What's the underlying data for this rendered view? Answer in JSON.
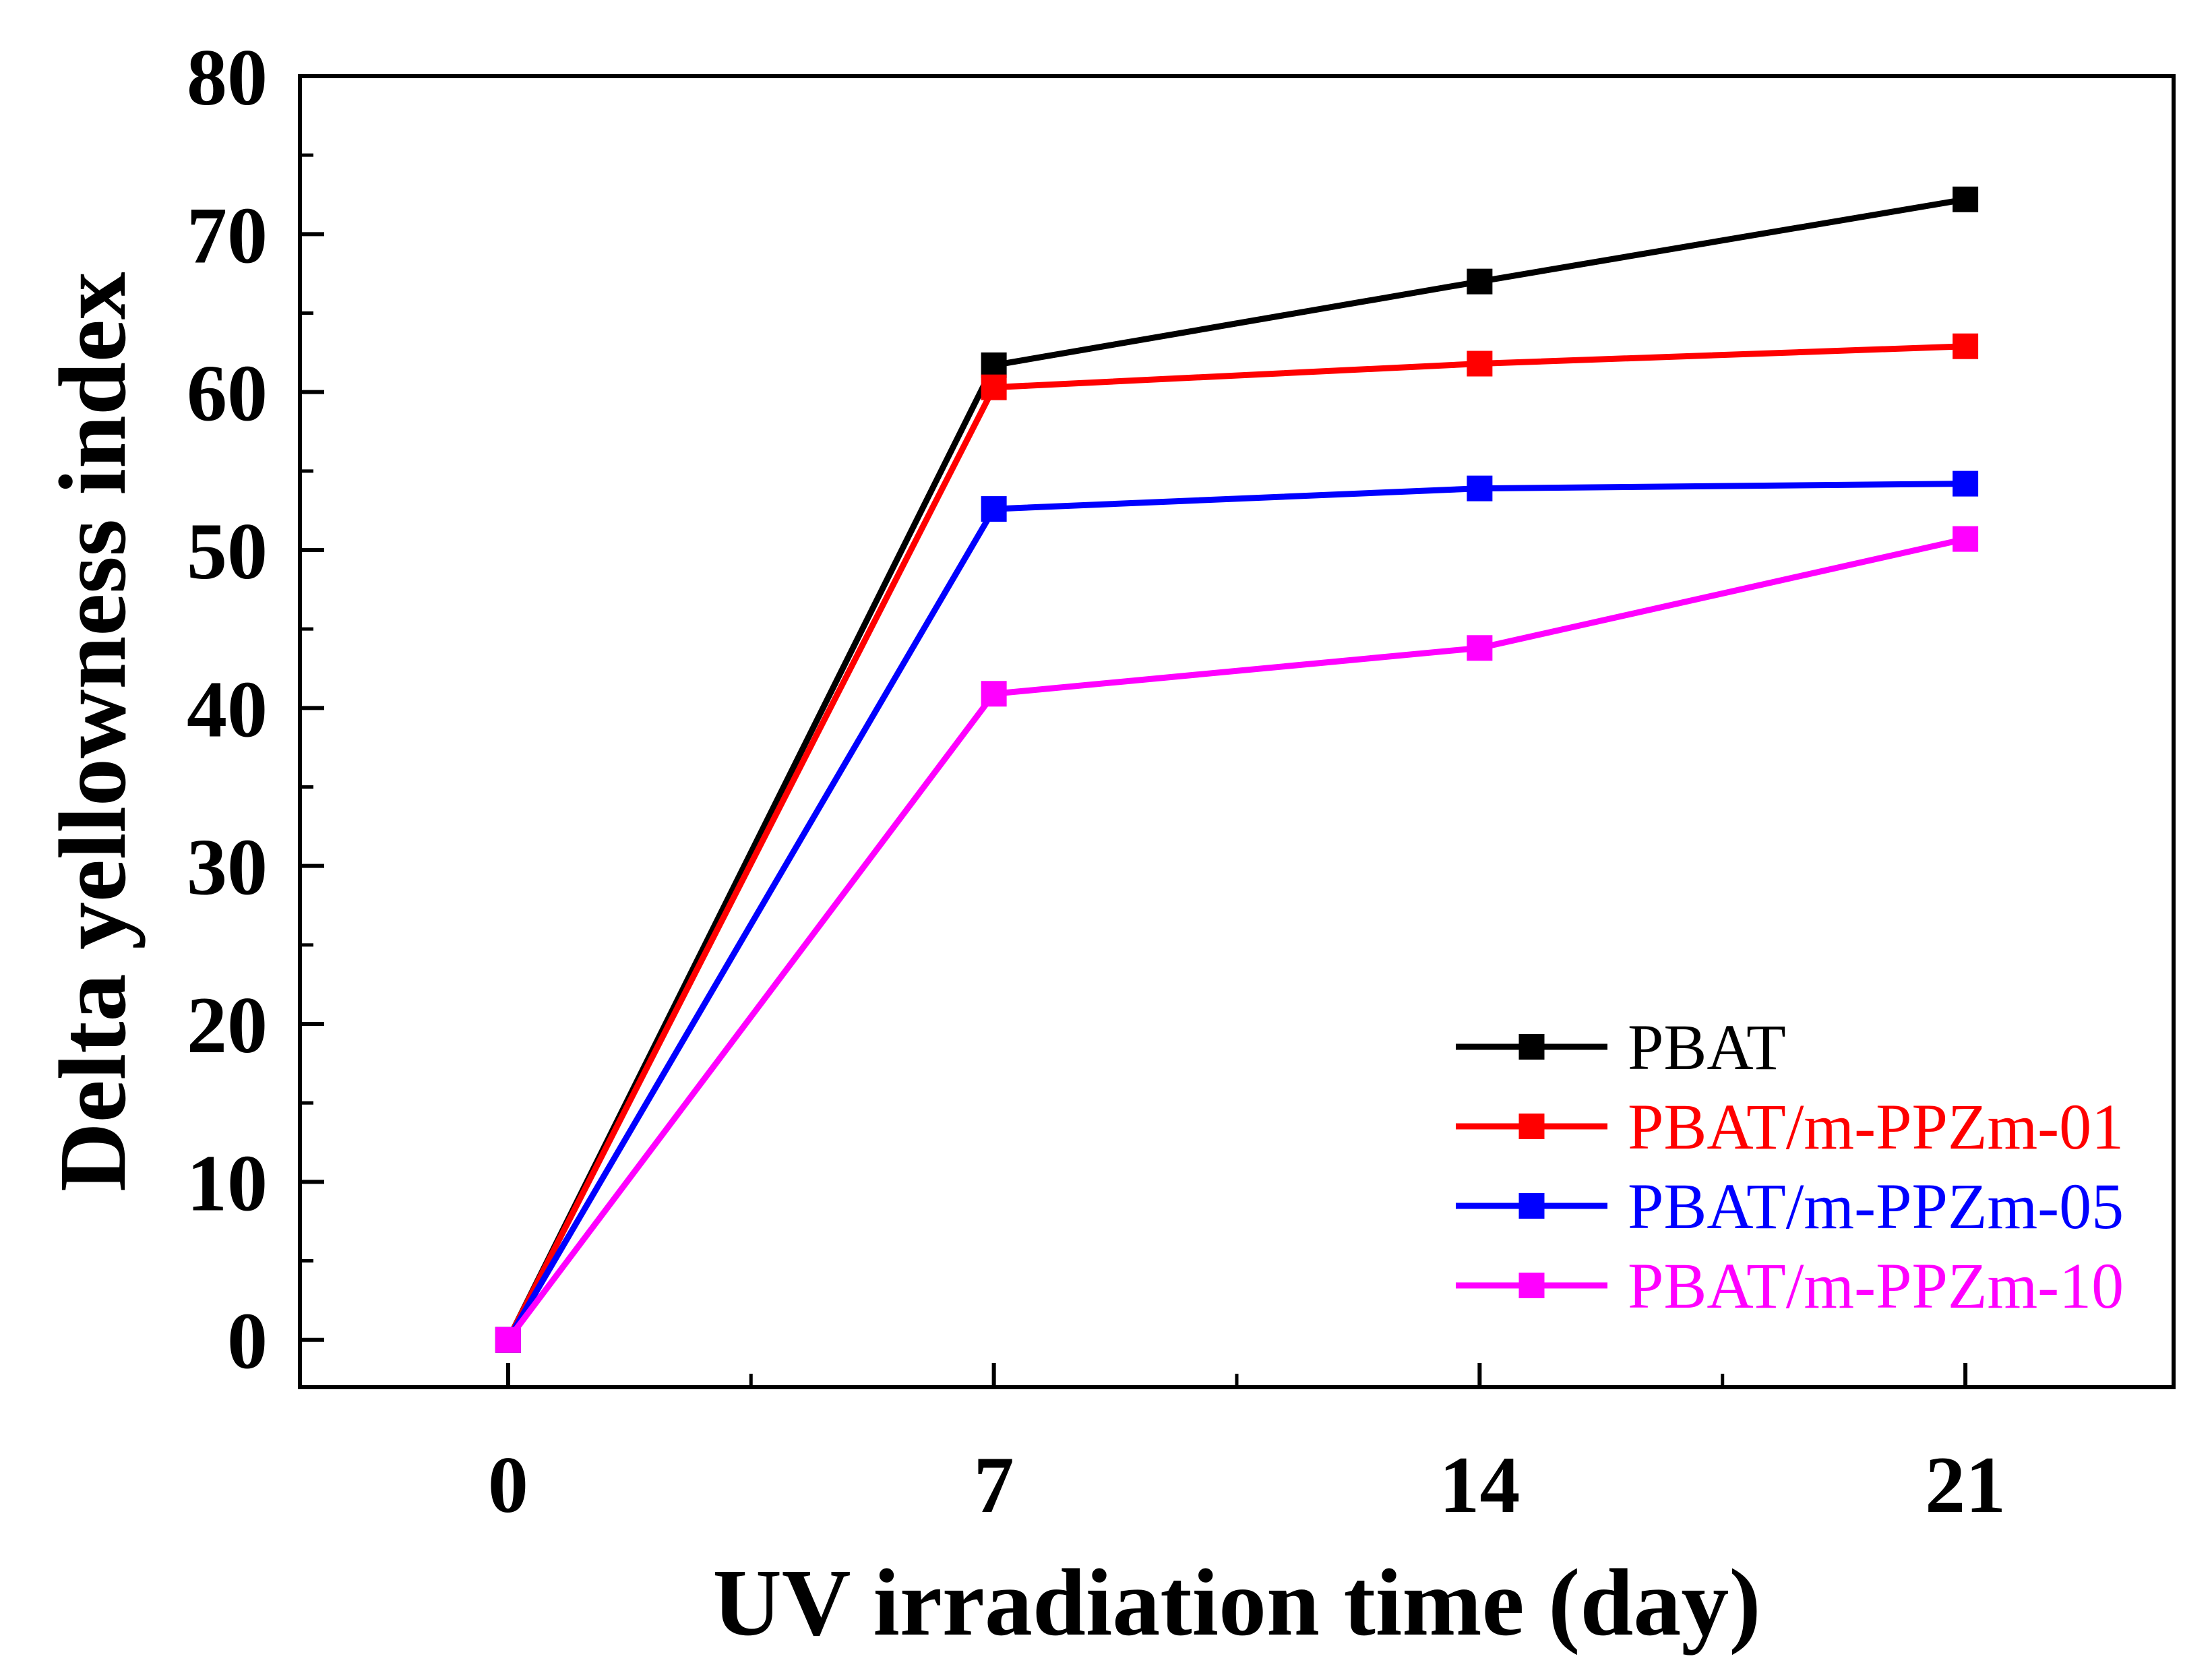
{
  "chart_data": {
    "type": "line",
    "title": "",
    "xlabel": "UV irradiation time (day)",
    "ylabel": "Delta yellowness index",
    "x": [
      0,
      7,
      14,
      21
    ],
    "xticks": [
      "0",
      "7",
      "14",
      "21"
    ],
    "xlim": [
      -3,
      24
    ],
    "ylim": [
      -3,
      80
    ],
    "yticks": [
      "0",
      "10",
      "20",
      "30",
      "40",
      "50",
      "60",
      "70",
      "80"
    ],
    "grid": false,
    "legend_position": "bottom-right",
    "series": [
      {
        "name": "PBAT",
        "color": "#000000",
        "values": [
          0,
          61.7,
          67.0,
          72.2
        ]
      },
      {
        "name": "PBAT/m-PPZm-01",
        "color": "#ff0000",
        "values": [
          0,
          60.3,
          61.8,
          62.9
        ]
      },
      {
        "name": "PBAT/m-PPZm-05",
        "color": "#0000ff",
        "values": [
          0,
          52.6,
          53.9,
          54.2
        ]
      },
      {
        "name": "PBAT/m-PPZm-10",
        "color": "#ff00ff",
        "values": [
          0,
          40.9,
          43.8,
          50.7
        ]
      }
    ]
  }
}
